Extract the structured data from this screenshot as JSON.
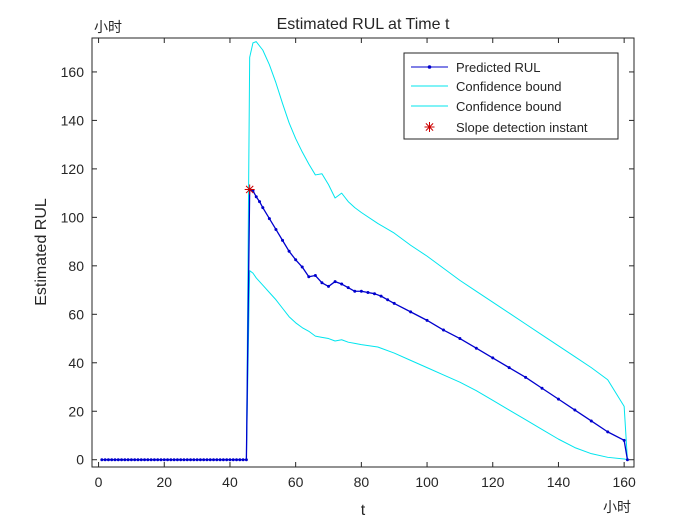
{
  "chart_data": {
    "type": "line",
    "title": "Estimated RUL at Time t",
    "xlabel": "t",
    "ylabel": "Estimated RUL",
    "x_unit_label": "小时",
    "y_unit_label": "小时",
    "xlim": [
      -2,
      163
    ],
    "ylim": [
      -3,
      174
    ],
    "xticks": [
      0,
      20,
      40,
      60,
      80,
      100,
      120,
      140,
      160
    ],
    "yticks": [
      0,
      20,
      40,
      60,
      80,
      100,
      120,
      140,
      160
    ],
    "grid": false,
    "legend_position": "top-right",
    "series": [
      {
        "name": "Predicted RUL",
        "color": "#0000cd",
        "marker": "dot",
        "x": [
          1,
          2,
          3,
          4,
          5,
          6,
          7,
          8,
          9,
          10,
          11,
          12,
          13,
          14,
          15,
          16,
          17,
          18,
          19,
          20,
          21,
          22,
          23,
          24,
          25,
          26,
          27,
          28,
          29,
          30,
          31,
          32,
          33,
          34,
          35,
          36,
          37,
          38,
          39,
          40,
          41,
          42,
          43,
          44,
          45,
          46,
          47,
          48,
          49,
          50,
          52,
          54,
          56,
          58,
          60,
          62,
          64,
          66,
          68,
          70,
          72,
          74,
          76,
          78,
          80,
          82,
          84,
          86,
          88,
          90,
          95,
          100,
          105,
          110,
          115,
          120,
          125,
          130,
          135,
          140,
          145,
          150,
          155,
          160,
          161
        ],
        "y": [
          0,
          0,
          0,
          0,
          0,
          0,
          0,
          0,
          0,
          0,
          0,
          0,
          0,
          0,
          0,
          0,
          0,
          0,
          0,
          0,
          0,
          0,
          0,
          0,
          0,
          0,
          0,
          0,
          0,
          0,
          0,
          0,
          0,
          0,
          0,
          0,
          0,
          0,
          0,
          0,
          0,
          0,
          0,
          0,
          0,
          111.5,
          111,
          108.5,
          106.5,
          104,
          99.5,
          95,
          90.5,
          86,
          82.5,
          79.5,
          75.5,
          76,
          73,
          71.5,
          73.5,
          72.5,
          71,
          69.5,
          69.5,
          69,
          68.5,
          67.5,
          66,
          64.5,
          61,
          57.5,
          53.5,
          50,
          46,
          42,
          38,
          34,
          29.5,
          25,
          20.5,
          16,
          11.5,
          8,
          0
        ]
      },
      {
        "name": "Confidence bound",
        "color": "#00e5ee",
        "marker": "none",
        "x": [
          45,
          46,
          47,
          48,
          50,
          52,
          54,
          56,
          58,
          60,
          62,
          64,
          66,
          68,
          70,
          72,
          74,
          76,
          78,
          80,
          85,
          90,
          95,
          100,
          105,
          110,
          115,
          120,
          125,
          130,
          135,
          140,
          145,
          150,
          155,
          160,
          161
        ],
        "y": [
          0,
          166,
          172,
          172.5,
          169,
          163,
          155.5,
          147,
          139,
          132.5,
          127,
          122,
          117.5,
          118,
          113.5,
          108,
          110,
          106.5,
          104,
          102,
          97.5,
          93.5,
          88.5,
          84,
          79,
          74,
          69.5,
          65,
          60.5,
          56,
          51.5,
          47,
          42.5,
          38,
          33,
          22,
          0
        ]
      },
      {
        "name": "Confidence bound",
        "color": "#00e5ee",
        "marker": "none",
        "x": [
          45,
          46,
          47,
          48,
          50,
          52,
          54,
          56,
          58,
          60,
          62,
          64,
          66,
          68,
          70,
          72,
          74,
          76,
          78,
          80,
          85,
          90,
          95,
          100,
          105,
          110,
          115,
          120,
          125,
          130,
          135,
          140,
          145,
          150,
          155,
          160,
          161
        ],
        "y": [
          0,
          78,
          77,
          75,
          72,
          69,
          66,
          62.5,
          59,
          56.5,
          54.5,
          53,
          51,
          50.5,
          50,
          49,
          49.5,
          48.5,
          48,
          47.5,
          46.5,
          44,
          41,
          38,
          35,
          32,
          28.5,
          24.5,
          20.5,
          16.5,
          12.5,
          8.5,
          5,
          2.5,
          1,
          0.3,
          0
        ]
      },
      {
        "name": "Slope detection instant",
        "color": "#cc0000",
        "marker": "asterisk",
        "x": [
          46
        ],
        "y": [
          111.5
        ]
      }
    ]
  }
}
